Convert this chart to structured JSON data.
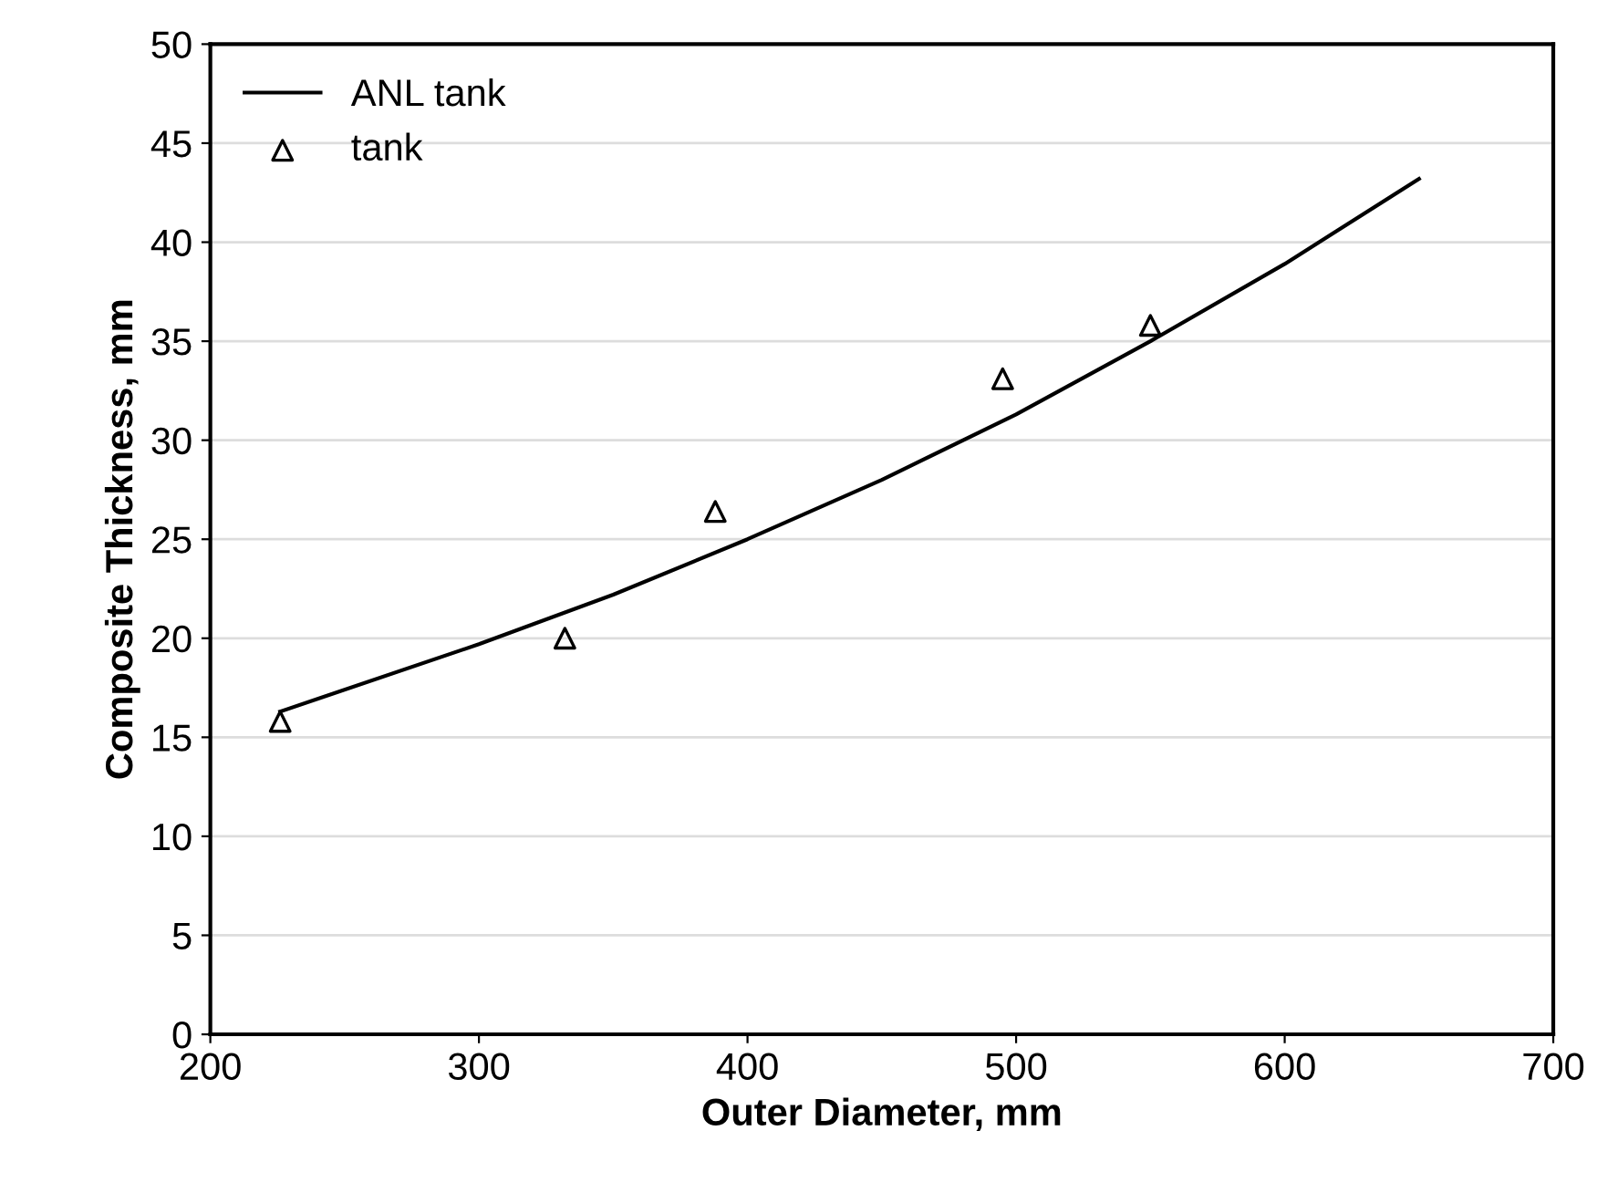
{
  "chart_data": {
    "type": "line",
    "xlabel": "Outer Diameter, mm",
    "ylabel": "Composite Thickness, mm",
    "series": [
      {
        "name": "ANL tank",
        "color": "#000000",
        "marker": "none",
        "x": [
          226,
          300,
          350,
          400,
          450,
          500,
          550,
          600,
          650
        ],
        "values": [
          16.3,
          19.7,
          22.2,
          25.0,
          28.0,
          31.3,
          35.0,
          38.9,
          43.2
        ]
      },
      {
        "name": "tank",
        "type": "scatter",
        "color": "#000000",
        "marker": "triangle",
        "x": [
          226,
          332,
          388,
          495,
          550
        ],
        "values": [
          15.8,
          20.0,
          26.4,
          33.1,
          35.8
        ]
      }
    ],
    "xlim": [
      200,
      700
    ],
    "xticks": [
      200,
      300,
      400,
      500,
      600,
      700
    ],
    "ylim": [
      0,
      50
    ],
    "yticks": [
      0,
      5,
      10,
      15,
      20,
      25,
      30,
      35,
      40,
      45,
      50
    ],
    "grid": "y",
    "legend": "top left"
  }
}
